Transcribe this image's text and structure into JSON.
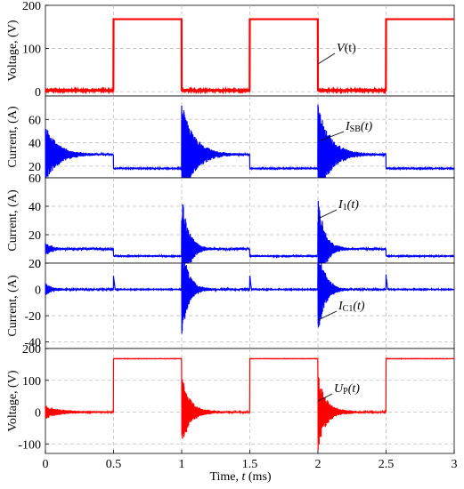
{
  "chart_data": {
    "type": "line",
    "xlabel_main": "Time, ",
    "xlabel_var": "t",
    "xlabel_unit": " (ms)",
    "x_ticks": [
      "0",
      "0.5",
      "1",
      "1.5",
      "2",
      "2.5",
      "3"
    ],
    "xlim": [
      0,
      3
    ],
    "grid": true,
    "panels": [
      {
        "ylabel": "Voltage, (V)",
        "ylim": [
          -10,
          200
        ],
        "y_ticks": [
          0,
          100,
          200
        ],
        "color": "#ff0000",
        "annotation": {
          "main": "V",
          "sub": "",
          "tail": "(t)"
        },
        "series": {
          "name": "V(t)",
          "base": 0,
          "levels_high": 168,
          "levels_low": 3,
          "edges_ms": [
            0.5,
            1.0,
            1.5,
            2.0,
            2.5
          ]
        }
      },
      {
        "ylabel": "Current, (A)",
        "ylim": [
          10,
          80
        ],
        "y_ticks": [
          20,
          40,
          60
        ],
        "color": "#0000ff",
        "annotation": {
          "main": "I",
          "sub": "SB",
          "tail": "(t)"
        },
        "series": {
          "name": "ISB(t)",
          "steady_high": 30,
          "steady_low": 18,
          "transient_peaks": [
            55,
            75,
            73
          ]
        }
      },
      {
        "ylabel": "Current, (A)",
        "ylim": [
          0,
          60
        ],
        "y_ticks": [
          0,
          20,
          40,
          60
        ],
        "color": "#0000ff",
        "annotation": {
          "main": "I",
          "sub": "1",
          "tail": "(t)"
        },
        "series": {
          "name": "I1(t)",
          "steady_high": 10,
          "steady_low": 5,
          "transient_peaks": [
            15,
            48,
            47
          ]
        }
      },
      {
        "ylabel": "Current, (A)",
        "ylim": [
          -45,
          20
        ],
        "y_ticks": [
          -40,
          -20,
          0,
          20
        ],
        "color": "#0000ff",
        "annotation": {
          "main": "I",
          "sub": "C1",
          "tail": "(t)"
        },
        "series": {
          "name": "IC1(t)",
          "steady": 0,
          "transient_min": [
            -5,
            -38,
            -38
          ],
          "spike_at_off": 12
        }
      },
      {
        "ylabel": "Voltage, (V)",
        "ylim": [
          -130,
          200
        ],
        "y_ticks": [
          -100,
          0,
          100,
          200
        ],
        "color": "#ff0000",
        "annotation": {
          "main": "U",
          "sub": "P",
          "tail": "(t)"
        },
        "series": {
          "name": "UP(t)",
          "levels_high": 168,
          "levels_low": 0,
          "transient_min": [
            -10,
            -115,
            -115
          ]
        }
      }
    ]
  }
}
